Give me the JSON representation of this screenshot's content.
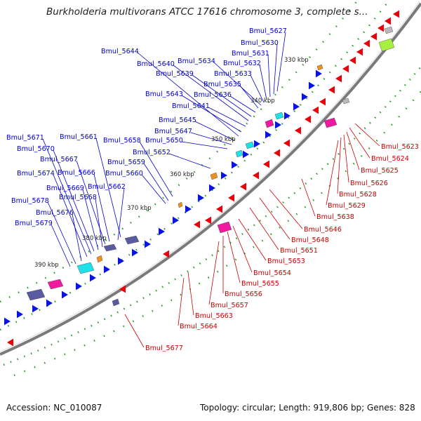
{
  "title": "Burkholderia multivorans ATCC 17616 chromosome 3, complete s...",
  "footer": {
    "accession": "Accession: NC_010087",
    "summary": "Topology: circular; Length: 919,806 bp; Genes: 828"
  },
  "colors": {
    "outer_strand": "#e8000b",
    "inner_strand": "#0a14e0",
    "outer_label": "#cc0000",
    "inner_label": "#0000cc",
    "backbone": "#7a7a7a",
    "tick_green": "#2a9a2a",
    "cog_magenta": "#f01aa0",
    "cog_cyan": "#20e0e8",
    "cog_orange": "#f09020",
    "cog_slate": "#5a5aa0",
    "cog_grey": "#b8b8b8",
    "cog_lime": "#a8f040"
  },
  "ticks": [
    "330 kbp",
    "340 kbp",
    "350 kbp",
    "360 kbp",
    "370 kbp",
    "380 kbp",
    "390 kbp"
  ],
  "outer_genes": [
    "Bmul_5623",
    "Bmul_5624",
    "Bmul_5625",
    "Bmul_5626",
    "Bmul_5628",
    "Bmul_5629",
    "Bmul_5638",
    "Bmul_5646",
    "Bmul_5648",
    "Bmul_5651",
    "Bmul_5653",
    "Bmul_5654",
    "Bmul_5655",
    "Bmul_5656",
    "Bmul_5657",
    "Bmul_5663",
    "Bmul_5664",
    "Bmul_5677"
  ],
  "inner_genes": [
    "Bmul_5627",
    "Bmul_5630",
    "Bmul_5631",
    "Bmul_5632",
    "Bmul_5633",
    "Bmul_5634",
    "Bmul_5635",
    "Bmul_5636",
    "Bmul_5639",
    "Bmul_5640",
    "Bmul_5641",
    "Bmul_5643",
    "Bmul_5644",
    "Bmul_5645",
    "Bmul_5647",
    "Bmul_5650",
    "Bmul_5652",
    "Bmul_5658",
    "Bmul_5659",
    "Bmul_5660",
    "Bmul_5661",
    "Bmul_5662",
    "Bmul_5666",
    "Bmul_5667",
    "Bmul_5668",
    "Bmul_5669",
    "Bmul_5670",
    "Bmul_5671",
    "Bmul_5674",
    "Bmul_5676",
    "Bmul_5678",
    "Bmul_5679"
  ]
}
